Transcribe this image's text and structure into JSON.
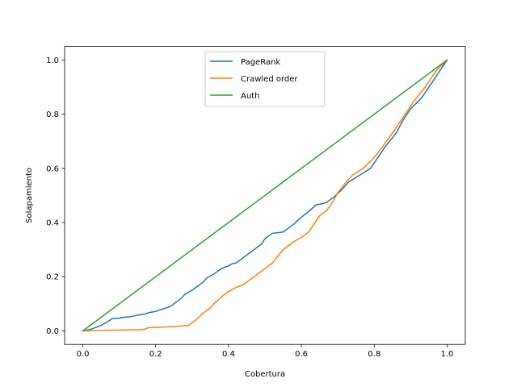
{
  "chart_data": {
    "type": "line",
    "title": "",
    "xlabel": "Cobertura",
    "ylabel": "Solapamiento",
    "xlim": [
      -0.05,
      1.05
    ],
    "ylim": [
      -0.05,
      1.05
    ],
    "xticks": [
      "0.0",
      "0.2",
      "0.4",
      "0.6",
      "0.8",
      "1.0"
    ],
    "yticks": [
      "0.0",
      "0.2",
      "0.4",
      "0.6",
      "0.8",
      "1.0"
    ],
    "grid": false,
    "legend_position": "top-center",
    "series": [
      {
        "name": "PageRank",
        "color": "#1f77b4",
        "x": [
          0.0,
          0.02,
          0.03,
          0.04,
          0.05,
          0.07,
          0.08,
          0.1,
          0.11,
          0.13,
          0.14,
          0.15,
          0.17,
          0.18,
          0.2,
          0.21,
          0.22,
          0.24,
          0.25,
          0.27,
          0.28,
          0.3,
          0.31,
          0.33,
          0.34,
          0.36,
          0.37,
          0.38,
          0.4,
          0.41,
          0.42,
          0.43,
          0.45,
          0.47,
          0.49,
          0.5,
          0.51,
          0.52,
          0.55,
          0.58,
          0.6,
          0.62,
          0.64,
          0.66,
          0.67,
          0.69,
          0.71,
          0.73,
          0.76,
          0.79,
          0.8,
          0.83,
          0.86,
          0.88,
          0.9,
          0.93,
          0.96,
          1.0
        ],
        "y": [
          0.0,
          0.005,
          0.01,
          0.015,
          0.02,
          0.035,
          0.045,
          0.047,
          0.05,
          0.052,
          0.055,
          0.058,
          0.062,
          0.067,
          0.072,
          0.077,
          0.081,
          0.09,
          0.1,
          0.12,
          0.135,
          0.15,
          0.16,
          0.18,
          0.195,
          0.21,
          0.22,
          0.23,
          0.24,
          0.248,
          0.25,
          0.26,
          0.28,
          0.3,
          0.32,
          0.34,
          0.35,
          0.36,
          0.365,
          0.395,
          0.42,
          0.44,
          0.465,
          0.47,
          0.475,
          0.495,
          0.52,
          0.55,
          0.575,
          0.6,
          0.62,
          0.68,
          0.73,
          0.78,
          0.82,
          0.86,
          0.92,
          1.0
        ]
      },
      {
        "name": "Crawled order",
        "color": "#ff7f0e",
        "x": [
          0.0,
          0.05,
          0.1,
          0.15,
          0.17,
          0.18,
          0.22,
          0.25,
          0.27,
          0.29,
          0.31,
          0.33,
          0.35,
          0.36,
          0.38,
          0.4,
          0.42,
          0.44,
          0.46,
          0.48,
          0.5,
          0.52,
          0.55,
          0.58,
          0.6,
          0.62,
          0.63,
          0.65,
          0.67,
          0.69,
          0.7,
          0.72,
          0.74,
          0.77,
          0.8,
          0.82,
          0.85,
          0.88,
          0.91,
          0.94,
          0.97,
          1.0
        ],
        "y": [
          0.0,
          0.002,
          0.003,
          0.004,
          0.006,
          0.012,
          0.014,
          0.016,
          0.018,
          0.02,
          0.04,
          0.065,
          0.085,
          0.1,
          0.125,
          0.145,
          0.16,
          0.17,
          0.19,
          0.21,
          0.23,
          0.25,
          0.3,
          0.33,
          0.345,
          0.365,
          0.385,
          0.425,
          0.445,
          0.485,
          0.51,
          0.545,
          0.575,
          0.6,
          0.64,
          0.675,
          0.73,
          0.79,
          0.85,
          0.9,
          0.96,
          1.0
        ]
      },
      {
        "name": "Auth",
        "color": "#2ca02c",
        "x": [
          0.0,
          1.0
        ],
        "y": [
          0.0,
          1.0
        ]
      }
    ]
  }
}
